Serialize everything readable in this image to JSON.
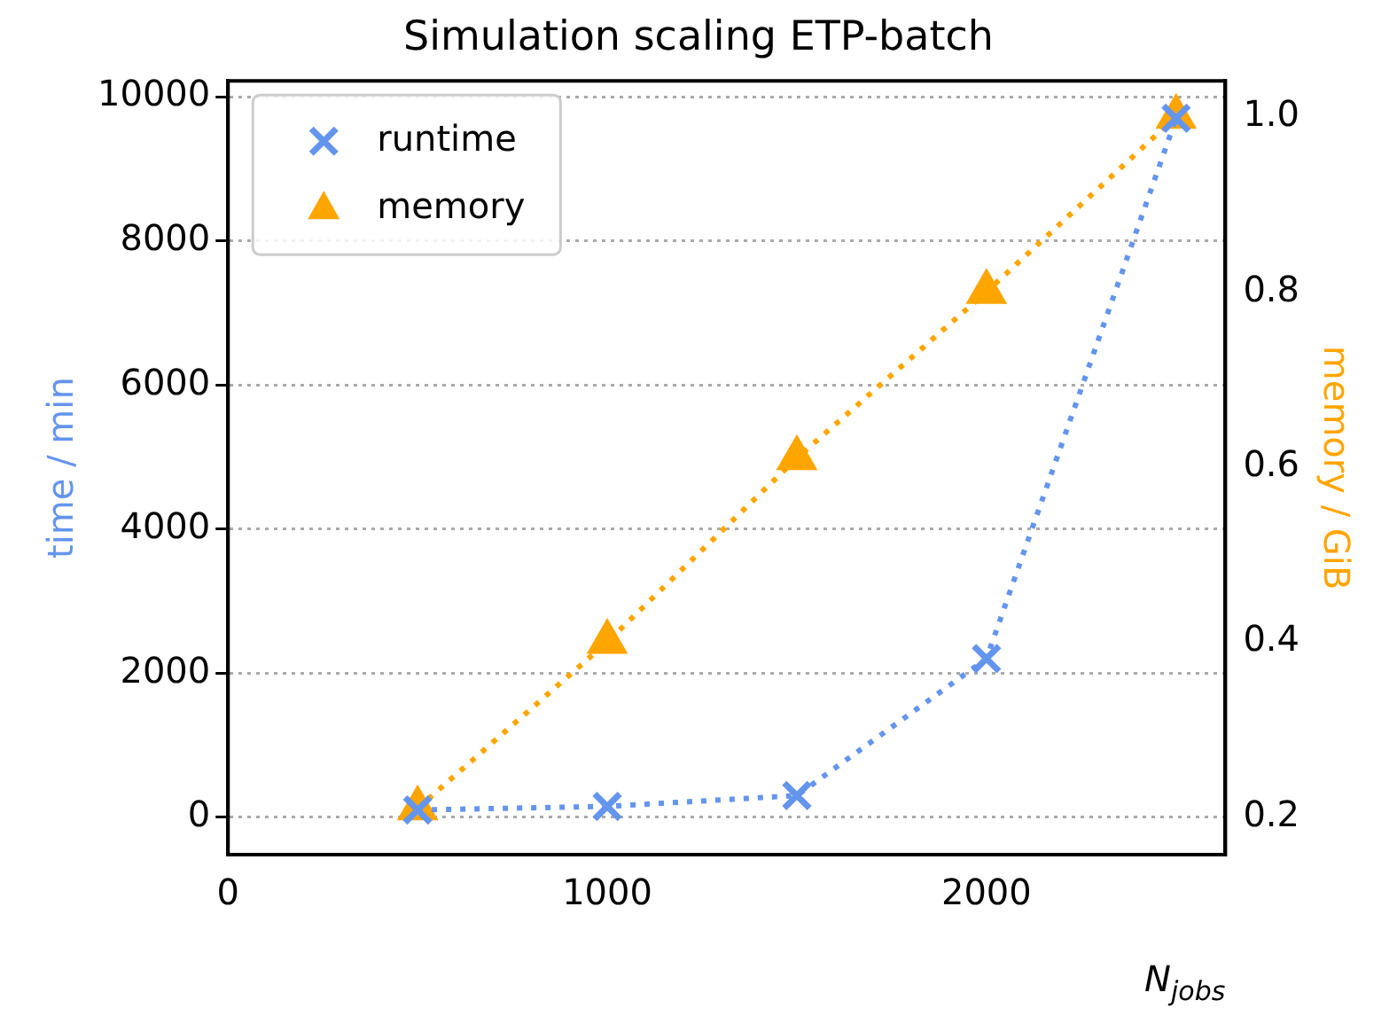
{
  "chart_data": {
    "type": "line",
    "title": "Simulation scaling ETP-batch",
    "xlabel": "N$_{jobs}$",
    "ylabel": "time / min",
    "y2label": "memory / GiB",
    "x": [
      500,
      1000,
      1500,
      2000,
      2500
    ],
    "series": [
      {
        "name": "runtime",
        "color": "#6495ed",
        "values": [
          100,
          150,
          300,
          2200,
          9700
        ],
        "marker": "cross",
        "line_style": "dotted"
      },
      {
        "name": "memory",
        "color": "#ffa500",
        "values": [
          0.21,
          0.4,
          0.61,
          0.8,
          1.0
        ],
        "marker": "triangle",
        "line_style": "dotted",
        "axis": "y2"
      }
    ],
    "xlim": [
      0,
      2630
    ],
    "xticks": [
      0,
      1000,
      2000
    ],
    "ylim": [
      -520,
      10220
    ],
    "yticks": [
      0,
      2000,
      4000,
      6000,
      8000,
      10000
    ],
    "y2lim": [
      0.157,
      1.041
    ],
    "y2ticks": [
      0.2,
      0.4,
      0.6,
      0.8,
      {
        "value": 1,
        "label": "1.0"
      }
    ],
    "grid": "y",
    "legend": "top left"
  }
}
